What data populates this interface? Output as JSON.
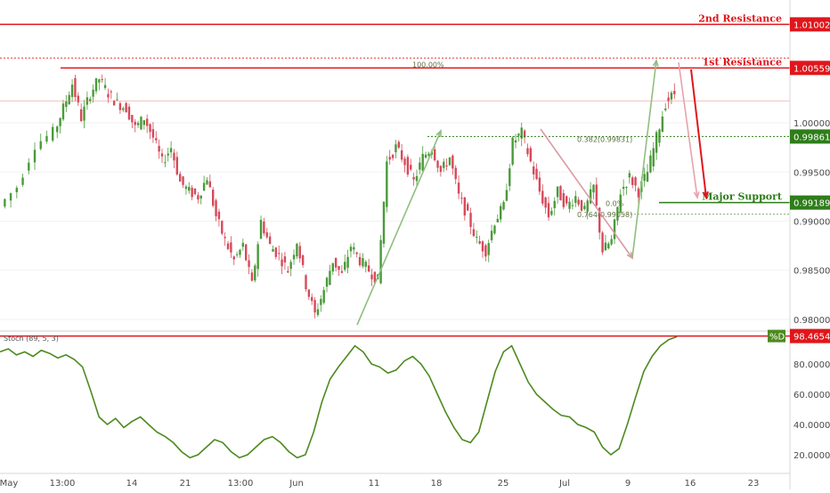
{
  "chart_data": [
    {
      "type": "candlestick",
      "title": "",
      "ylim": [
        0.979,
        1.0125
      ],
      "y_ticks": [
        "0.98000",
        "0.98500",
        "0.99000",
        "0.99500",
        "1.00000"
      ],
      "x_ticks": [
        "May",
        "13:00",
        "14",
        "21",
        "13:00",
        "Jun",
        "11",
        "18",
        "25",
        "Jul",
        "9",
        "16",
        "23"
      ],
      "levels": [
        {
          "name": "2nd Resistance",
          "value": "1.01002",
          "price": 1.01002,
          "color": "#e0161b"
        },
        {
          "name": "1st Resistance",
          "value": "1.00559",
          "price": 1.00559,
          "color": "#e0161b"
        },
        {
          "name": "",
          "value": "0.99861",
          "price": 0.99861,
          "color": "#2e7d1a"
        },
        {
          "name": "Major Support",
          "value": "0.99189",
          "price": 0.99189,
          "color": "#2e7d1a"
        }
      ],
      "fib_labels": [
        "100.00%",
        "0.382(0.99831)",
        "0.764(0.99058)",
        "0.764(0.99058)"
      ],
      "fib_partial_label": "0.0%",
      "colors": {
        "up": "#4a9a3a",
        "down": "#d64a5a",
        "resistance": "#e0161b",
        "support": "#2e7d1a"
      },
      "price_path": [
        [
          0,
          0.9915
        ],
        [
          2,
          0.9935
        ],
        [
          4,
          0.9978
        ],
        [
          6,
          0.999
        ],
        [
          7,
          1.0015
        ],
        [
          8,
          1.004
        ],
        [
          9,
          1.0005
        ],
        [
          10,
          1.003
        ],
        [
          11,
          1.0045
        ],
        [
          12,
          1.003
        ],
        [
          13,
          1.002
        ],
        [
          14,
          1.0015
        ],
        [
          15,
          0.9995
        ],
        [
          16,
          1.0005
        ],
        [
          17,
          0.9985
        ],
        [
          18,
          0.996
        ],
        [
          19,
          0.9975
        ],
        [
          20,
          0.994
        ],
        [
          21,
          0.993
        ],
        [
          22,
          0.9925
        ],
        [
          23,
          0.9945
        ],
        [
          24,
          0.9905
        ],
        [
          25,
          0.988
        ],
        [
          26,
          0.986
        ],
        [
          27,
          0.9875
        ],
        [
          28,
          0.9835
        ],
        [
          29,
          0.99
        ],
        [
          30,
          0.9875
        ],
        [
          31,
          0.9865
        ],
        [
          32,
          0.985
        ],
        [
          33,
          0.988
        ],
        [
          34,
          0.9835
        ],
        [
          35,
          0.9805
        ],
        [
          36,
          0.983
        ],
        [
          37,
          0.986
        ],
        [
          38,
          0.9845
        ],
        [
          39,
          0.9875
        ],
        [
          40,
          0.986
        ],
        [
          41,
          0.985
        ],
        [
          42,
          0.984
        ],
        [
          43,
          0.996
        ],
        [
          44,
          0.9975
        ],
        [
          45,
          0.996
        ],
        [
          46,
          0.994
        ],
        [
          47,
          0.9965
        ],
        [
          48,
          0.9975
        ],
        [
          49,
          0.995
        ],
        [
          50,
          0.9965
        ],
        [
          51,
          0.9925
        ],
        [
          52,
          0.9905
        ],
        [
          53,
          0.988
        ],
        [
          54,
          0.987
        ],
        [
          55,
          0.99
        ],
        [
          56,
          0.9915
        ],
        [
          57,
          0.998
        ],
        [
          58,
          0.999
        ],
        [
          59,
          0.996
        ],
        [
          60,
          0.993
        ],
        [
          61,
          0.9905
        ],
        [
          62,
          0.993
        ],
        [
          63,
          0.9915
        ],
        [
          64,
          0.9925
        ],
        [
          65,
          0.991
        ],
        [
          66,
          0.9935
        ],
        [
          67,
          0.987
        ],
        [
          68,
          0.988
        ],
        [
          69,
          0.993
        ],
        [
          70,
          0.9945
        ],
        [
          71,
          0.993
        ],
        [
          72,
          0.995
        ],
        [
          73,
          0.9985
        ],
        [
          74,
          1.002
        ],
        [
          75,
          1.003
        ]
      ]
    },
    {
      "type": "line",
      "title": "Stoch (89, 5, 3)",
      "series": [
        {
          "name": "%D",
          "values": [
            88,
            90,
            86,
            88,
            85,
            89,
            87,
            84,
            86,
            83,
            78,
            62,
            45,
            40,
            44,
            38,
            42,
            45,
            40,
            35,
            32,
            28,
            22,
            18,
            20,
            25,
            30,
            28,
            22,
            18,
            20,
            25,
            30,
            32,
            28,
            22,
            18,
            20,
            35,
            55,
            70,
            78,
            85,
            92,
            88,
            80,
            78,
            74,
            76,
            82,
            85,
            80,
            72,
            60,
            48,
            38,
            30,
            28,
            35,
            55,
            75,
            88,
            92,
            80,
            68,
            60,
            55,
            50,
            46,
            45,
            40,
            38,
            35,
            25,
            20,
            24,
            40,
            58,
            75,
            85,
            92,
            96,
            98
          ]
        }
      ],
      "ylim": [
        10,
        100
      ],
      "y_ticks": [
        "20.0000",
        "40.0000",
        "60.0000",
        "80.0000"
      ],
      "current_value": "98.4654",
      "label": "%D",
      "line_color": "#4d8a1f"
    }
  ]
}
